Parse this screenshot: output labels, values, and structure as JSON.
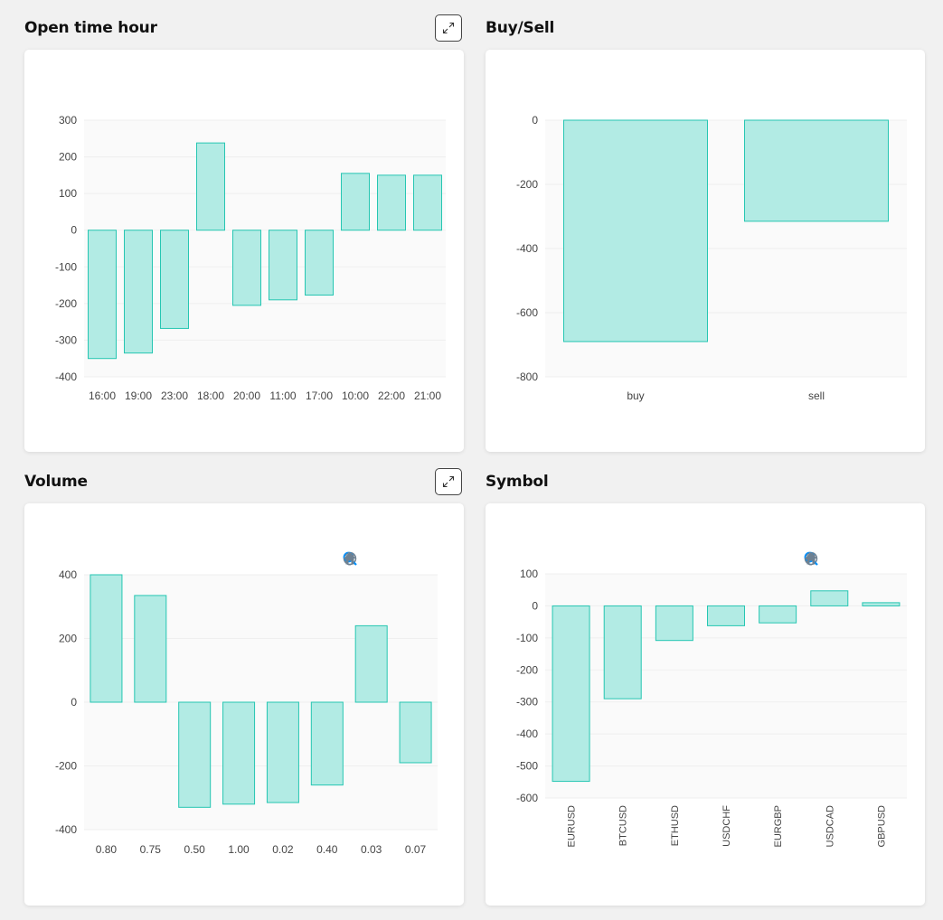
{
  "panels": {
    "open_time_hour": {
      "title": "Open time hour"
    },
    "buy_sell": {
      "title": "Buy/Sell"
    },
    "volume": {
      "title": "Volume"
    },
    "symbol": {
      "title": "Symbol"
    }
  },
  "colors": {
    "bar_fill": "#b2ebe4",
    "bar_stroke": "#26c6b2",
    "plot_bg": "#fafafa",
    "grid": "#efefef",
    "axis_text": "#444444",
    "toolbar_icon": "#6e8192",
    "toolbar_active": "#008ffb"
  },
  "chart_data": [
    {
      "id": "open_time_hour",
      "type": "bar",
      "title": "Open time hour",
      "categories": [
        "16:00",
        "19:00",
        "23:00",
        "18:00",
        "20:00",
        "11:00",
        "17:00",
        "10:00",
        "22:00",
        "21:00"
      ],
      "values": [
        -350,
        -335,
        -268,
        238,
        -205,
        -190,
        -177,
        155,
        150,
        150
      ],
      "yticks": [
        300,
        200,
        100,
        0,
        -100,
        -200,
        -300,
        -400
      ],
      "ylim": [
        -400,
        300
      ],
      "grid": true,
      "x_label_rotation": 0
    },
    {
      "id": "buy_sell",
      "type": "bar",
      "title": "Buy/Sell",
      "categories": [
        "buy",
        "sell"
      ],
      "values": [
        -690,
        -315
      ],
      "yticks": [
        0,
        -200,
        -400,
        -600,
        -800
      ],
      "ylim": [
        -800,
        0
      ],
      "grid": true,
      "x_label_rotation": 0
    },
    {
      "id": "volume",
      "type": "bar",
      "title": "Volume",
      "categories": [
        "0.80",
        "0.75",
        "0.50",
        "1.00",
        "0.02",
        "0.40",
        "0.03",
        "0.07"
      ],
      "values": [
        400,
        335,
        -330,
        -320,
        -315,
        -260,
        240,
        -190
      ],
      "yticks": [
        400,
        200,
        0,
        -200,
        -400
      ],
      "ylim": [
        -400,
        400
      ],
      "grid": true,
      "x_label_rotation": 0,
      "toolbar": [
        "zoom-in-icon",
        "zoom-out-icon",
        "zoom-selection-icon",
        "pan-hand-icon",
        "reset-home-icon"
      ]
    },
    {
      "id": "symbol",
      "type": "bar",
      "title": "Symbol",
      "categories": [
        "EURUSD",
        "BTCUSD",
        "ETHUSD",
        "USDCHF",
        "EURGBP",
        "USDCAD",
        "GBPUSD"
      ],
      "values": [
        -548,
        -290,
        -108,
        -62,
        -53,
        47,
        10
      ],
      "yticks": [
        100,
        0,
        -100,
        -200,
        -300,
        -400,
        -500,
        -600
      ],
      "ylim": [
        -600,
        100
      ],
      "grid": true,
      "x_label_rotation": -90,
      "toolbar": [
        "zoom-in-icon",
        "zoom-out-icon",
        "zoom-selection-icon",
        "pan-hand-icon",
        "reset-home-icon"
      ]
    }
  ]
}
